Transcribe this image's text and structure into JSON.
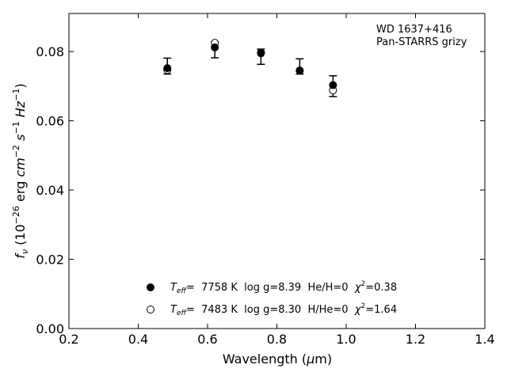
{
  "chart_data": {
    "type": "scatter",
    "xlabel": "Wavelength (μm)",
    "ylabel": "f_ν (10^-26 erg cm^-2 s^-1 Hz^-1)",
    "xlim": [
      0.2,
      1.4
    ],
    "ylim": [
      0.0,
      0.091
    ],
    "xticks": [
      0.2,
      0.4,
      0.6,
      0.8,
      1.0,
      1.2,
      1.4
    ],
    "xtick_labels": [
      "0.2",
      "0.4",
      "0.6",
      "0.8",
      "1.0",
      "1.2",
      "1.4"
    ],
    "yticks": [
      0.0,
      0.02,
      0.04,
      0.06,
      0.08
    ],
    "ytick_labels": [
      "0.00",
      "0.02",
      "0.04",
      "0.06",
      "0.08"
    ],
    "grid": false,
    "legend_position": "bottom-center",
    "annotation": [
      "WD 1637+416",
      "Pan-STARRS grizy"
    ],
    "observed": {
      "x": [
        0.484,
        0.621,
        0.754,
        0.866,
        0.962
      ],
      "y": [
        0.0758,
        0.0805,
        0.0785,
        0.0757,
        0.07
      ],
      "yerr": [
        0.0023,
        0.0023,
        0.0022,
        0.0022,
        0.003
      ]
    },
    "series": [
      {
        "name": "Teff= 7758 K log g=8.39 He/H=0 χ²=0.38",
        "marker": "filled-circle",
        "x": [
          0.484,
          0.621,
          0.754,
          0.866,
          0.962
        ],
        "y": [
          0.0752,
          0.0812,
          0.0795,
          0.0745,
          0.0703
        ]
      },
      {
        "name": "Teff= 7483 K log g=8.30 H/He=0 χ²=1.64",
        "marker": "open-circle",
        "x": [
          0.484,
          0.621,
          0.754,
          0.866,
          0.962
        ],
        "y": [
          0.0747,
          0.0825,
          0.0797,
          0.0745,
          0.0688
        ]
      }
    ],
    "legend": [
      {
        "prefix": "T",
        "sub": "eff",
        "text": "=  7758 K  log g=8.39  He/H=0  ",
        "chi": "χ",
        "sup": "2",
        "tail": "=0.38"
      },
      {
        "prefix": "T",
        "sub": "eff",
        "text": "=  7483 K  log g=8.30  H/He=0  ",
        "chi": "χ",
        "sup": "2",
        "tail": "=1.64"
      }
    ]
  }
}
